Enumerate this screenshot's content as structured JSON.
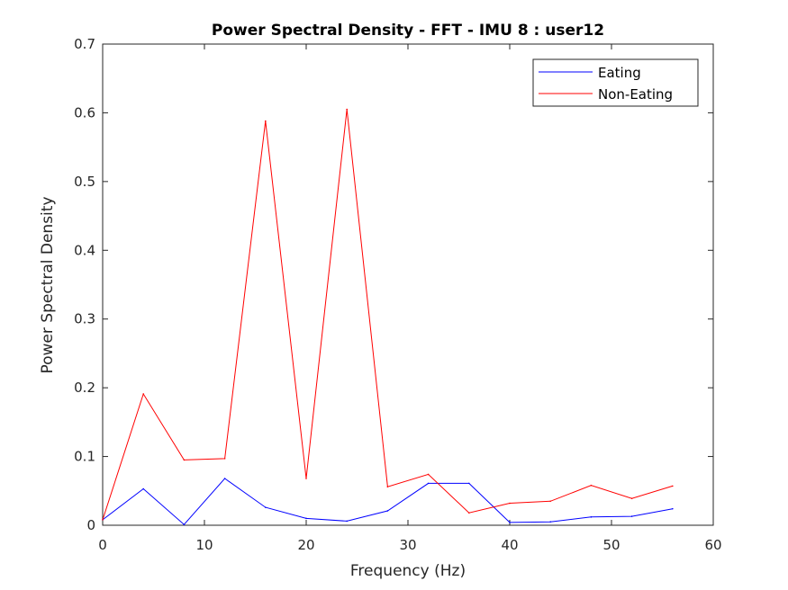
{
  "chart_data": {
    "type": "line",
    "title": "Power Spectral Density - FFT - IMU 8 :  user12",
    "xlabel": "Frequency (Hz)",
    "ylabel": "Power Spectral Density",
    "xlim": [
      0,
      60
    ],
    "ylim": [
      0,
      0.7
    ],
    "xticks": [
      0,
      10,
      20,
      30,
      40,
      50,
      60
    ],
    "yticks": [
      0,
      0.1,
      0.2,
      0.3,
      0.4,
      0.5,
      0.6,
      0.7
    ],
    "xtick_labels": [
      "0",
      "10",
      "20",
      "30",
      "40",
      "50",
      "60"
    ],
    "ytick_labels": [
      "0",
      "0.1",
      "0.2",
      "0.3",
      "0.4",
      "0.5",
      "0.6",
      "0.7"
    ],
    "grid": false,
    "legend_position": "top-right",
    "x": [
      0,
      4,
      8,
      12,
      16,
      20,
      24,
      28,
      32,
      36,
      40,
      44,
      48,
      52,
      56
    ],
    "series": [
      {
        "name": "Eating",
        "color": "#0000ff",
        "values": [
          0.008,
          0.053,
          0.001,
          0.068,
          0.026,
          0.01,
          0.006,
          0.021,
          0.061,
          0.061,
          0.004,
          0.005,
          0.012,
          0.013,
          0.024
        ]
      },
      {
        "name": "Non-Eating",
        "color": "#ff0000",
        "values": [
          0.008,
          0.191,
          0.095,
          0.097,
          0.588,
          0.068,
          0.605,
          0.056,
          0.074,
          0.018,
          0.032,
          0.035,
          0.058,
          0.039,
          0.057
        ]
      }
    ]
  }
}
